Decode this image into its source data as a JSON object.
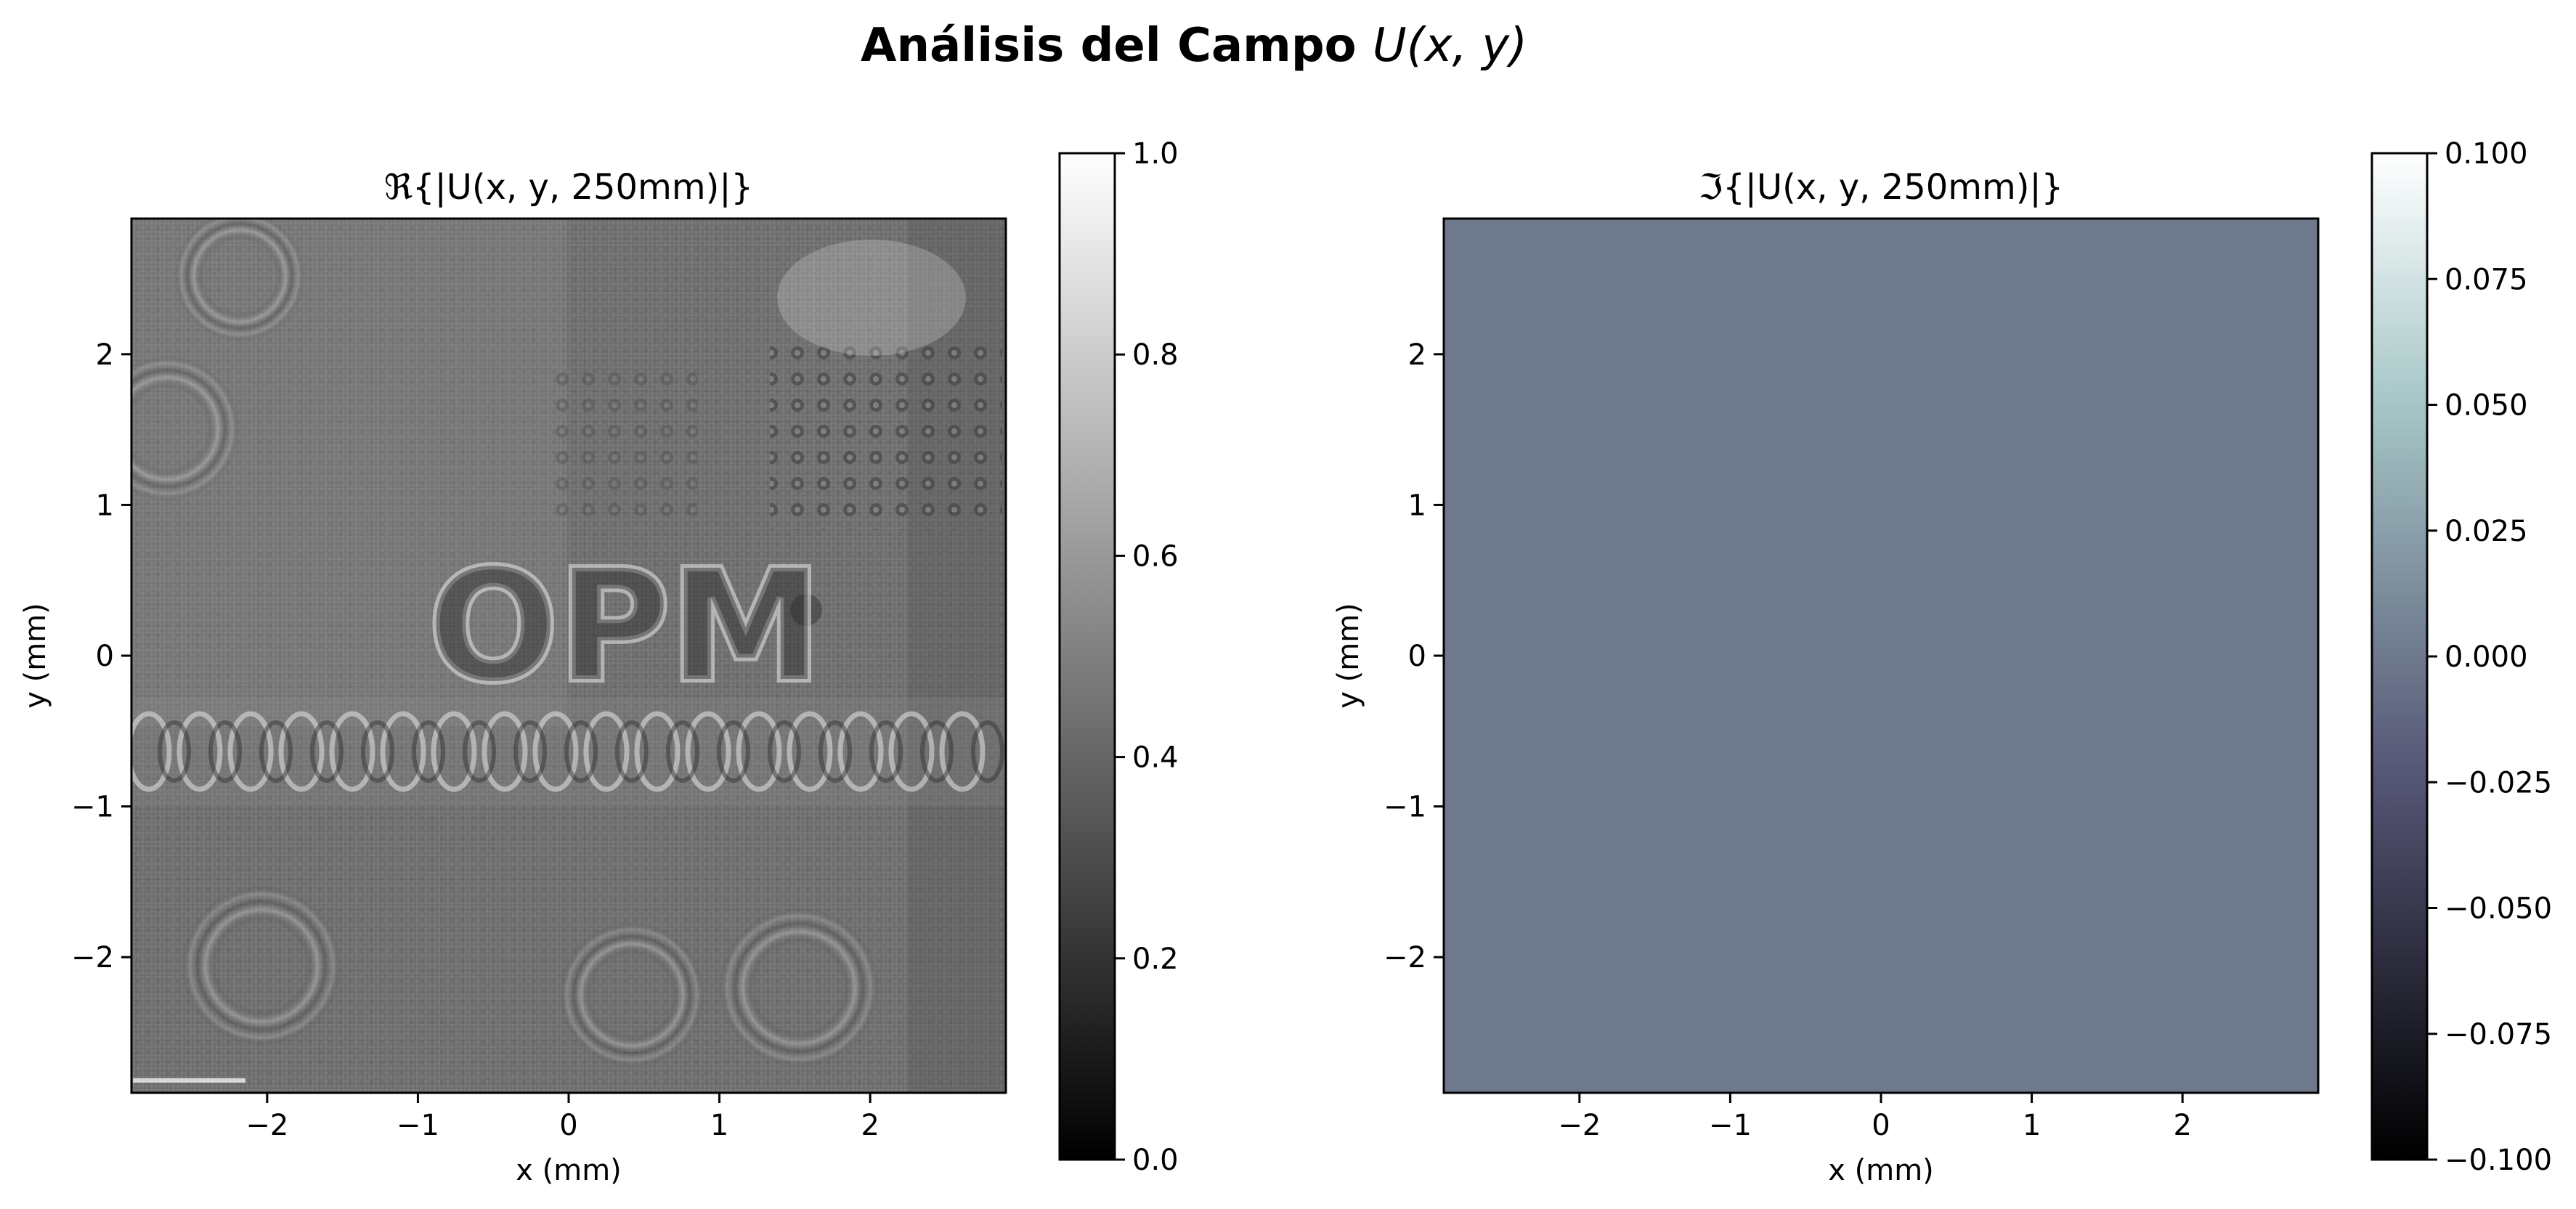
{
  "figure": {
    "title_prefix": "Análisis del Campo",
    "title_math": "U(x, y)"
  },
  "chart_data": [
    {
      "type": "heatmap",
      "title": "ℜ{|U(x, y, 250mm)|}",
      "xlabel": "x (mm)",
      "ylabel": "y (mm)",
      "xlim": [
        -2.9,
        2.9
      ],
      "ylim": [
        -2.9,
        2.9
      ],
      "xticks": [
        -2,
        -1,
        0,
        1,
        2
      ],
      "yticks": [
        -2,
        -1,
        0,
        1,
        2
      ],
      "colormap": "gray",
      "colorbar": {
        "range": [
          0.0,
          1.0
        ],
        "ticks": [
          0.0,
          0.2,
          0.4,
          0.6,
          0.8,
          1.0
        ],
        "labels": [
          "0.0",
          "0.2",
          "0.4",
          "0.6",
          "0.8",
          "1.0"
        ]
      },
      "overlay_text": "OPM",
      "description_values": {
        "mean_level": 0.45
      }
    },
    {
      "type": "heatmap",
      "title": "ℑ{|U(x, y, 250mm)|}",
      "xlabel": "x (mm)",
      "ylabel": "y (mm)",
      "xlim": [
        -2.9,
        2.9
      ],
      "ylim": [
        -2.9,
        2.9
      ],
      "xticks": [
        -2,
        -1,
        0,
        1,
        2
      ],
      "yticks": [
        -2,
        -1,
        0,
        1,
        2
      ],
      "colormap": "bone",
      "uniform_value": 0.0,
      "colorbar": {
        "range": [
          -0.1,
          0.1
        ],
        "ticks": [
          -0.1,
          -0.075,
          -0.05,
          -0.025,
          0.0,
          0.025,
          0.05,
          0.075,
          0.1
        ],
        "labels": [
          "−0.100",
          "−0.075",
          "−0.050",
          "−0.025",
          "0.000",
          "0.025",
          "0.050",
          "0.075",
          "0.100"
        ]
      }
    }
  ],
  "colors": {
    "imag_fill": "#6e798d",
    "real_bg": "#727272"
  }
}
